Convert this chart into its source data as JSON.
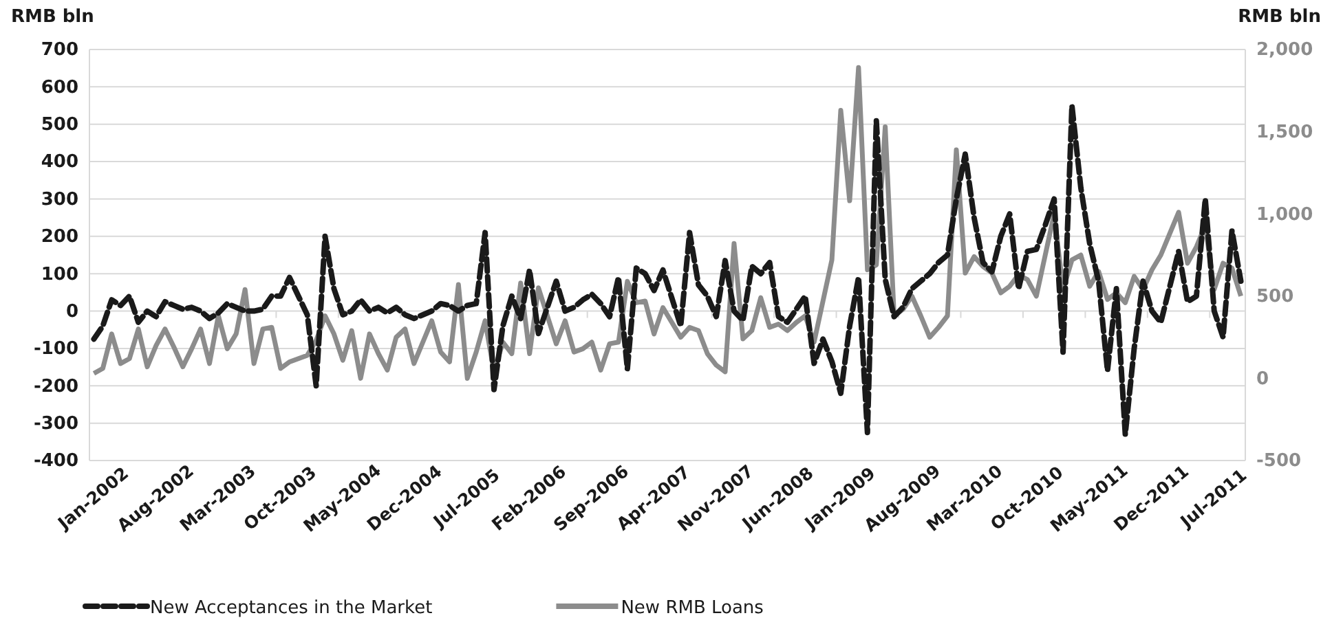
{
  "chart_data": {
    "type": "line",
    "ylabel": "RMB bln",
    "y2label": "RMB bln",
    "categories": [
      "Jan-2002",
      null,
      null,
      null,
      null,
      null,
      null,
      "Aug-2002",
      null,
      null,
      null,
      null,
      null,
      null,
      "Mar-2003",
      null,
      null,
      null,
      null,
      null,
      null,
      "Oct-2003",
      null,
      null,
      null,
      null,
      null,
      null,
      "May-2004",
      null,
      null,
      null,
      null,
      null,
      null,
      "Dec-2004",
      null,
      null,
      null,
      null,
      null,
      null,
      "Jul-2005",
      null,
      null,
      null,
      null,
      null,
      null,
      "Feb-2006",
      null,
      null,
      null,
      null,
      null,
      null,
      "Sep-2006",
      null,
      null,
      null,
      null,
      null,
      null,
      "Apr-2007",
      null,
      null,
      null,
      null,
      null,
      null,
      "Nov-2007",
      null,
      null,
      null,
      null,
      null,
      null,
      "Jun-2008",
      null,
      null,
      null,
      null,
      null,
      null,
      "Jan-2009",
      null,
      null,
      null,
      null,
      null,
      null,
      "Aug-2009",
      null,
      null,
      null,
      null,
      null,
      null,
      "Mar-2010",
      null,
      null,
      null,
      null,
      null,
      null,
      "Oct-2010",
      null,
      null,
      null,
      null,
      null,
      null,
      "May-2011",
      null,
      null,
      null,
      null,
      null,
      null,
      "Dec-2011",
      null,
      null,
      null,
      null,
      null,
      null,
      "Jul-2011",
      null,
      null,
      null
    ],
    "series": [
      {
        "name": "New Acceptances in the Market",
        "color": "#1a1a1a",
        "line_style": "dashed",
        "values": [
          -75,
          -40,
          30,
          15,
          40,
          -30,
          0,
          -15,
          25,
          15,
          5,
          10,
          0,
          -20,
          -5,
          20,
          10,
          0,
          0,
          5,
          40,
          40,
          90,
          40,
          -10,
          -200,
          200,
          60,
          -10,
          0,
          30,
          0,
          10,
          -5,
          10,
          -10,
          -20,
          -10,
          0,
          20,
          15,
          0,
          15,
          20,
          210,
          -210,
          -40,
          40,
          -20,
          110,
          -60,
          10,
          80,
          0,
          10,
          30,
          45,
          20,
          -15,
          90,
          -155,
          115,
          100,
          55,
          110,
          35,
          -40,
          210,
          70,
          40,
          -15,
          135,
          0,
          -25,
          120,
          100,
          130,
          -15,
          -30,
          5,
          40,
          -140,
          -75,
          -135,
          -220,
          -40,
          90,
          -325,
          510,
          85,
          -15,
          10,
          60,
          80,
          100,
          130,
          150,
          300,
          420,
          250,
          130,
          105,
          200,
          260,
          60,
          160,
          165,
          230,
          300,
          -110,
          550,
          330,
          180,
          80,
          -160,
          60,
          -330,
          -100,
          80,
          0,
          -30,
          65,
          160,
          25,
          40,
          300,
          0,
          -70,
          215,
          80
        ]
      },
      {
        "name": "New RMB Loans",
        "color": "#8c8c8c",
        "axis": "y2",
        "line_style": "solid",
        "values": [
          30,
          60,
          270,
          90,
          120,
          300,
          70,
          200,
          300,
          190,
          70,
          180,
          300,
          90,
          380,
          180,
          270,
          540,
          90,
          300,
          310,
          60,
          100,
          120,
          140,
          230,
          380,
          270,
          110,
          290,
          0,
          270,
          150,
          50,
          250,
          300,
          90,
          220,
          350,
          160,
          100,
          570,
          0,
          160,
          350,
          40,
          220,
          150,
          580,
          150,
          550,
          380,
          210,
          350,
          160,
          180,
          220,
          50,
          210,
          220,
          590,
          460,
          470,
          270,
          430,
          340,
          250,
          310,
          290,
          150,
          80,
          40,
          820,
          240,
          290,
          490,
          310,
          330,
          290,
          340,
          380,
          220,
          470,
          720,
          1630,
          1080,
          1890,
          660,
          690,
          1530,
          380,
          420,
          500,
          380,
          250,
          310,
          380,
          1390,
          640,
          740,
          680,
          640,
          520,
          560,
          630,
          600,
          500,
          750,
          1000,
          540,
          720,
          750,
          560,
          650,
          480,
          520,
          460,
          620,
          540,
          660,
          750,
          880,
          1010,
          700,
          800,
          930,
          540,
          700,
          670,
          500
        ]
      }
    ],
    "ylim": [
      -400,
      700
    ],
    "yticks": [
      -400,
      -300,
      -200,
      -100,
      0,
      100,
      200,
      300,
      400,
      500,
      600,
      700
    ],
    "y2lim": [
      -500,
      2000
    ],
    "y2ticks": [
      -500,
      0,
      500,
      {
        "value": 1000,
        "label": "1,000"
      },
      {
        "value": 1500,
        "label": "1,500"
      },
      {
        "value": 2000,
        "label": "2,000"
      }
    ],
    "grid": "y",
    "legend": "bottom"
  }
}
